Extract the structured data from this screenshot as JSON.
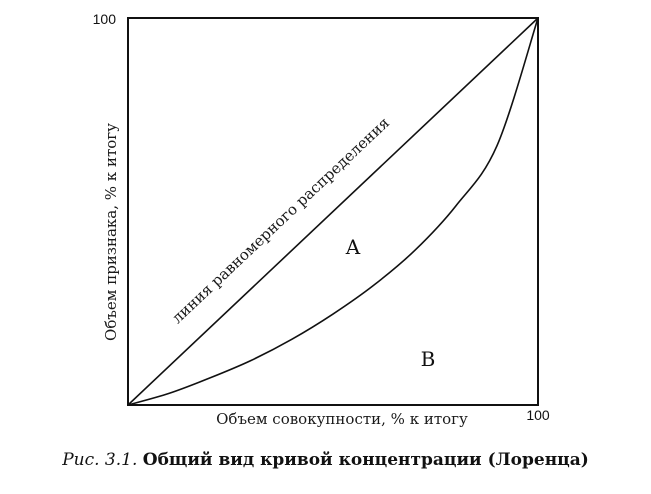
{
  "chart_data": {
    "type": "line",
    "title": "",
    "xlabel": "Объем совокупности, % к итогу",
    "ylabel": "Объем признака, % к итогу",
    "xlim": [
      0,
      100
    ],
    "ylim": [
      0,
      100
    ],
    "x_tick_labels": [
      "100"
    ],
    "y_tick_labels": [
      "100"
    ],
    "grid": false,
    "series": [
      {
        "name": "линия равномерного распределения",
        "x": [
          0,
          100
        ],
        "y": [
          0,
          100
        ]
      },
      {
        "name": "",
        "x": [
          0,
          10,
          20,
          30,
          40,
          50,
          60,
          70,
          80,
          90,
          100
        ],
        "y": [
          0,
          3,
          7,
          11.5,
          17,
          23.5,
          31,
          40,
          51.5,
          67,
          100
        ]
      }
    ],
    "annotations": [
      "A",
      "B"
    ]
  },
  "caption": {
    "figure_number": "Рис. 3.1.",
    "title": "Общий вид кривой концентрации (Лоренца)"
  },
  "colors": {
    "line": "#111111",
    "background": "#ffffff"
  }
}
